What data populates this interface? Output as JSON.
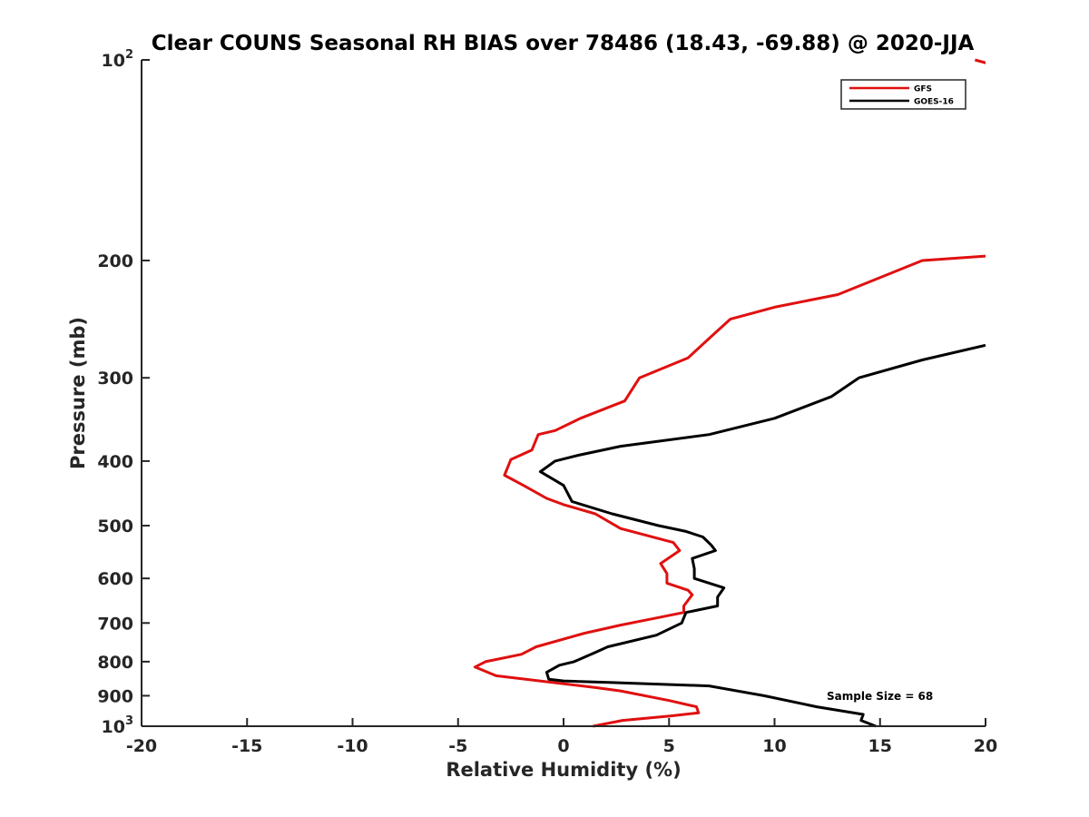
{
  "chart_data": {
    "type": "line",
    "title": "Clear COUNS Seasonal RH BIAS over 78486 (18.43, -69.88) @ 2020-JJA",
    "xlabel": "Relative Humidity (%)",
    "ylabel": "Pressure (mb)",
    "xlim": [
      -20,
      20
    ],
    "ylim": [
      100,
      1000
    ],
    "y_scale": "log",
    "y_reversed": true,
    "grid": false,
    "legend_position": "top-right",
    "x_ticks": [
      -20,
      -15,
      -10,
      -5,
      0,
      5,
      10,
      15,
      20
    ],
    "x_tick_labels": [
      "-20",
      "-15",
      "-10",
      "-5",
      "0",
      "5",
      "10",
      "15",
      "20"
    ],
    "y_ticks": [
      {
        "value": 100,
        "base": "10",
        "exp": "2"
      },
      {
        "value": 200,
        "label": "200"
      },
      {
        "value": 300,
        "label": "300"
      },
      {
        "value": 400,
        "label": "400"
      },
      {
        "value": 500,
        "label": "500"
      },
      {
        "value": 600,
        "label": "600"
      },
      {
        "value": 700,
        "label": "700"
      },
      {
        "value": 800,
        "label": "800"
      },
      {
        "value": 900,
        "label": "900"
      },
      {
        "value": 1000,
        "base": "10",
        "exp": "3"
      }
    ],
    "annotation": "Sample Size = 68",
    "series": [
      {
        "name": "GFS",
        "color": "#e01010",
        "segments": [
          [
            [
              19.5,
              100
            ],
            [
              20.5,
              102
            ]
          ],
          [
            [
              20,
              197
            ],
            [
              17,
              200
            ],
            [
              13,
              225
            ],
            [
              10,
              235
            ],
            [
              7.9,
              245
            ],
            [
              7,
              260
            ],
            [
              5.9,
              280
            ],
            [
              4.5,
              292
            ],
            [
              3.6,
              300
            ],
            [
              2.9,
              325
            ],
            [
              0.8,
              345
            ],
            [
              -0.4,
              360
            ],
            [
              -1.2,
              365
            ],
            [
              -1.5,
              385
            ],
            [
              -2.5,
              398
            ],
            [
              -2.8,
              420
            ],
            [
              -1.9,
              435
            ],
            [
              -0.8,
              455
            ],
            [
              0,
              465
            ],
            [
              1.5,
              480
            ],
            [
              2.7,
              505
            ],
            [
              5.2,
              530
            ],
            [
              5.5,
              545
            ],
            [
              4.6,
              570
            ],
            [
              4.9,
              590
            ],
            [
              4.9,
              610
            ],
            [
              5.9,
              625
            ],
            [
              6.1,
              635
            ],
            [
              5.7,
              660
            ],
            [
              5.7,
              675
            ],
            [
              4.2,
              690
            ],
            [
              2.7,
              705
            ],
            [
              1.0,
              725
            ],
            [
              -1.3,
              760
            ],
            [
              -2.0,
              780
            ],
            [
              -3.7,
              800
            ],
            [
              -4.2,
              815
            ],
            [
              -3.2,
              840
            ],
            [
              1.5,
              875
            ],
            [
              2.7,
              885
            ],
            [
              5.0,
              915
            ],
            [
              6.3,
              935
            ],
            [
              6.4,
              955
            ],
            [
              5.1,
              965
            ],
            [
              2.8,
              980
            ],
            [
              1.4,
              1000
            ]
          ]
        ]
      },
      {
        "name": "GOES-16",
        "color": "#000000",
        "segments": [
          [
            [
              20,
              268
            ],
            [
              17,
              282
            ],
            [
              14,
              300
            ],
            [
              12.7,
              320
            ],
            [
              10,
              345
            ],
            [
              6.9,
              365
            ],
            [
              2.7,
              380
            ],
            [
              0.7,
              392
            ],
            [
              -0.4,
              400
            ],
            [
              -1.1,
              415
            ],
            [
              0,
              435
            ],
            [
              0.4,
              460
            ],
            [
              2.3,
              480
            ],
            [
              4.5,
              500
            ],
            [
              5.8,
              510
            ],
            [
              6.6,
              520
            ],
            [
              7.0,
              535
            ],
            [
              7.2,
              545
            ],
            [
              6.1,
              560
            ],
            [
              6.2,
              580
            ],
            [
              6.2,
              600
            ],
            [
              7.6,
              620
            ],
            [
              7.3,
              640
            ],
            [
              7.3,
              660
            ],
            [
              5.8,
              675
            ],
            [
              5.6,
              700
            ],
            [
              4.4,
              730
            ],
            [
              2.1,
              760
            ],
            [
              1.5,
              775
            ],
            [
              0.5,
              800
            ],
            [
              -0.2,
              810
            ],
            [
              -0.8,
              830
            ],
            [
              -0.7,
              850
            ],
            [
              0,
              855
            ],
            [
              2.3,
              860
            ],
            [
              6.9,
              870
            ],
            [
              9.5,
              900
            ],
            [
              12,
              935
            ],
            [
              14.2,
              960
            ],
            [
              14.1,
              980
            ],
            [
              14.8,
              1000
            ]
          ]
        ]
      }
    ]
  }
}
